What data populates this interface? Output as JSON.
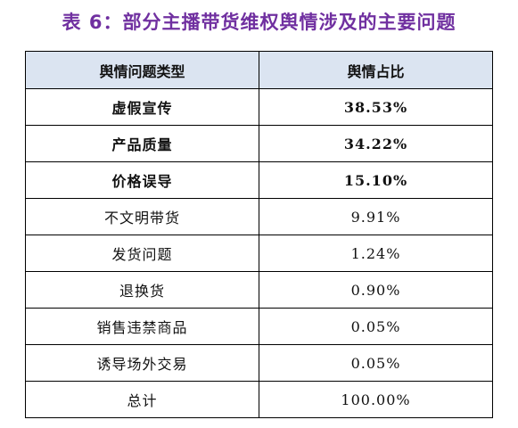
{
  "caption": "表 6：部分主播带货维权舆情涉及的主要问题",
  "table": {
    "headers": [
      "舆情问题类型",
      "舆情占比"
    ],
    "rows": [
      {
        "type": "虚假宣传",
        "share": "38.53%",
        "emphasis": true
      },
      {
        "type": "产品质量",
        "share": "34.22%",
        "emphasis": true
      },
      {
        "type": "价格误导",
        "share": "15.10%",
        "emphasis": true
      },
      {
        "type": "不文明带货",
        "share": "9.91%",
        "emphasis": false
      },
      {
        "type": "发货问题",
        "share": "1.24%",
        "emphasis": false
      },
      {
        "type": "退换货",
        "share": "0.90%",
        "emphasis": false
      },
      {
        "type": "销售违禁商品",
        "share": "0.05%",
        "emphasis": false
      },
      {
        "type": "诱导场外交易",
        "share": "0.05%",
        "emphasis": false
      },
      {
        "type": "总计",
        "share": "100.00%",
        "emphasis": false
      }
    ]
  },
  "colors": {
    "caption": "#7030a0",
    "header_background": "#dbe4f1",
    "border": "#000000"
  }
}
